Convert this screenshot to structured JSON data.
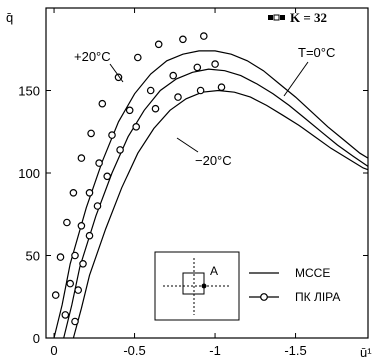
{
  "chart_data": {
    "type": "line",
    "ylabel": "q̄",
    "xlabel": "ū¹",
    "xlim": [
      0.05,
      -1.95
    ],
    "ylim": [
      0,
      200
    ],
    "x_tick_labels": [
      "0",
      "-0.5",
      "-1",
      "-1.5"
    ],
    "x_ticks": [
      0,
      -0.5,
      -1,
      -1.5
    ],
    "y_tick_labels": [
      "0",
      "50",
      "100",
      "150"
    ],
    "y_ticks": [
      0,
      50,
      100,
      150
    ],
    "badge": "K = 32",
    "annotations": {
      "plus20": "+20°C",
      "zero": "T=0°C",
      "minus20": "−20°C",
      "point_a": "A"
    },
    "legend": {
      "mcce": "MCCE",
      "pk": "ПК ЛІРА"
    },
    "series": [
      {
        "curve": [
          [
            0,
            0
          ],
          [
            -0.05,
            20
          ],
          [
            -0.1,
            45
          ],
          [
            -0.2,
            79
          ],
          [
            -0.3,
            107
          ],
          [
            -0.4,
            131
          ],
          [
            -0.5,
            148
          ],
          [
            -0.6,
            160
          ],
          [
            -0.7,
            168
          ],
          [
            -0.8,
            172
          ],
          [
            -0.9,
            174
          ],
          [
            -1.0,
            174
          ],
          [
            -1.1,
            172
          ],
          [
            -1.2,
            168
          ],
          [
            -1.3,
            162
          ],
          [
            -1.4,
            154
          ],
          [
            -1.5,
            146
          ],
          [
            -1.6,
            137
          ],
          [
            -1.7,
            128
          ],
          [
            -1.8,
            120
          ],
          [
            -1.9,
            112
          ],
          [
            -1.95,
            109
          ]
        ],
        "markers": [
          [
            -0.01,
            26
          ],
          [
            -0.04,
            49
          ],
          [
            -0.08,
            70
          ],
          [
            -0.12,
            88
          ],
          [
            -0.17,
            109
          ],
          [
            -0.23,
            124
          ],
          [
            -0.3,
            142
          ],
          [
            -0.4,
            158
          ],
          [
            -0.52,
            170
          ],
          [
            -0.65,
            178
          ],
          [
            -0.8,
            181
          ],
          [
            -0.93,
            183
          ]
        ]
      },
      {
        "curve": [
          [
            -0.06,
            0
          ],
          [
            -0.11,
            20
          ],
          [
            -0.16,
            43
          ],
          [
            -0.26,
            74
          ],
          [
            -0.36,
            100
          ],
          [
            -0.46,
            122
          ],
          [
            -0.56,
            138
          ],
          [
            -0.66,
            150
          ],
          [
            -0.76,
            157
          ],
          [
            -0.86,
            161
          ],
          [
            -0.96,
            163
          ],
          [
            -1.06,
            162
          ],
          [
            -1.16,
            159
          ],
          [
            -1.26,
            154
          ],
          [
            -1.36,
            148
          ],
          [
            -1.46,
            141
          ],
          [
            -1.56,
            133
          ],
          [
            -1.66,
            125
          ],
          [
            -1.76,
            117
          ],
          [
            -1.86,
            110
          ],
          [
            -1.95,
            104
          ]
        ],
        "markers": [
          [
            -0.07,
            14
          ],
          [
            -0.1,
            33
          ],
          [
            -0.13,
            50
          ],
          [
            -0.17,
            68
          ],
          [
            -0.22,
            88
          ],
          [
            -0.28,
            106
          ],
          [
            -0.36,
            123
          ],
          [
            -0.47,
            138
          ],
          [
            -0.6,
            150
          ],
          [
            -0.74,
            159
          ],
          [
            -0.89,
            164
          ],
          [
            -1.0,
            166
          ]
        ]
      },
      {
        "curve": [
          [
            -0.12,
            0
          ],
          [
            -0.17,
            18
          ],
          [
            -0.22,
            38
          ],
          [
            -0.32,
            66
          ],
          [
            -0.42,
            91
          ],
          [
            -0.52,
            112
          ],
          [
            -0.62,
            127
          ],
          [
            -0.72,
            138
          ],
          [
            -0.82,
            145
          ],
          [
            -0.92,
            149
          ],
          [
            -1.02,
            150
          ],
          [
            -1.12,
            149
          ],
          [
            -1.22,
            146
          ],
          [
            -1.32,
            141
          ],
          [
            -1.42,
            135
          ],
          [
            -1.52,
            129
          ],
          [
            -1.62,
            122
          ],
          [
            -1.72,
            115
          ],
          [
            -1.82,
            109
          ],
          [
            -1.92,
            103
          ],
          [
            -1.95,
            102
          ]
        ],
        "markers": [
          [
            -0.13,
            10
          ],
          [
            -0.15,
            29
          ],
          [
            -0.18,
            45
          ],
          [
            -0.22,
            62
          ],
          [
            -0.27,
            80
          ],
          [
            -0.33,
            98
          ],
          [
            -0.41,
            114
          ],
          [
            -0.51,
            128
          ],
          [
            -0.63,
            139
          ],
          [
            -0.77,
            146
          ],
          [
            -0.91,
            150
          ],
          [
            -1.04,
            152
          ]
        ]
      }
    ]
  }
}
